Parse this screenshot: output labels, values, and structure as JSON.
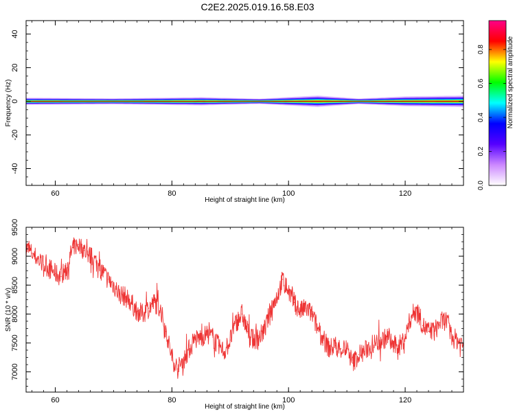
{
  "title": "C2E2.2025.019.16.58.E03",
  "chart_data": [
    {
      "type": "heatmap",
      "xlabel": "Height of straight line (km)",
      "ylabel": "Frequency (Hz)",
      "xlim": [
        55,
        130
      ],
      "ylim": [
        -50,
        48
      ],
      "xticks": [
        60,
        80,
        100,
        120
      ],
      "yticks": [
        -40,
        -20,
        0,
        20,
        40
      ],
      "colorbar": {
        "label": "Normalized spectral amplitude",
        "ticks": [
          0.0,
          0.2,
          0.4,
          0.6,
          0.8
        ],
        "range": [
          0,
          0.97
        ],
        "colors": [
          "#ffffff",
          "#cc88ff",
          "#5500ff",
          "#0000ff",
          "#00ffff",
          "#00ff00",
          "#ffff00",
          "#ff0000",
          "#ff0088"
        ]
      },
      "band": [
        {
          "x": 55,
          "halfwidth_hz": 2.2
        },
        {
          "x": 70,
          "halfwidth_hz": 1.8
        },
        {
          "x": 85,
          "halfwidth_hz": 2.5
        },
        {
          "x": 95,
          "halfwidth_hz": 1.6
        },
        {
          "x": 105,
          "halfwidth_hz": 3.5
        },
        {
          "x": 112,
          "halfwidth_hz": 1.7
        },
        {
          "x": 120,
          "halfwidth_hz": 3.0
        },
        {
          "x": 130,
          "halfwidth_hz": 3.5
        }
      ]
    },
    {
      "type": "line",
      "xlabel": "Height of straight line (km)",
      "ylabel": "SNR (10 * v/v)",
      "xlim": [
        55,
        130
      ],
      "ylim": [
        6650,
        9500
      ],
      "xticks": [
        60,
        80,
        100,
        120
      ],
      "yticks": [
        7000,
        7500,
        8000,
        8500,
        9000,
        9500
      ],
      "color": "#ee3333",
      "x": [
        55,
        56,
        57,
        58,
        59,
        60,
        61,
        62,
        63,
        64,
        65,
        66,
        67,
        68,
        69,
        70,
        71,
        72,
        73,
        74,
        75,
        76,
        77,
        78,
        79,
        80,
        81,
        82,
        83,
        84,
        85,
        86,
        87,
        88,
        89,
        90,
        91,
        92,
        93,
        94,
        95,
        96,
        97,
        98,
        99,
        100,
        101,
        102,
        103,
        104,
        105,
        106,
        107,
        108,
        109,
        110,
        111,
        112,
        113,
        114,
        115,
        116,
        117,
        118,
        119,
        120,
        121,
        122,
        123,
        124,
        125,
        126,
        127,
        128,
        129,
        130
      ],
      "y": [
        9150,
        9050,
        8950,
        8850,
        8800,
        8700,
        8650,
        8800,
        9150,
        9200,
        9100,
        9000,
        8900,
        8750,
        8600,
        8500,
        8350,
        8300,
        8200,
        8050,
        8000,
        8100,
        8200,
        8100,
        7700,
        7250,
        7050,
        7200,
        7400,
        7550,
        7600,
        7650,
        7600,
        7450,
        7350,
        7550,
        7850,
        8000,
        7700,
        7550,
        7600,
        7750,
        8100,
        8300,
        8600,
        8400,
        8200,
        8050,
        8100,
        8000,
        7750,
        7550,
        7400,
        7450,
        7400,
        7400,
        7150,
        7300,
        7350,
        7450,
        7500,
        7550,
        7600,
        7450,
        7450,
        7600,
        7950,
        8100,
        7800,
        7700,
        7700,
        7850,
        7900,
        7600,
        7550,
        7450
      ]
    }
  ]
}
